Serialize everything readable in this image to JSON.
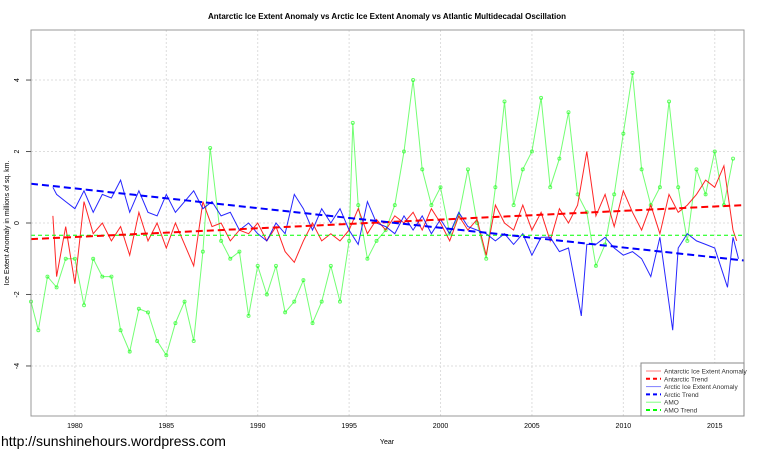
{
  "chart_data": {
    "type": "line",
    "title": "Antarctic Ice Extent Anomaly vs Arctic Ice Extent Anomaly vs Atlantic Multidecadal Oscillation",
    "xlabel": "Year",
    "ylabel": "Ice Extent Anomaly in millions of sq. km.",
    "xlim": [
      1977.6,
      2016.6
    ],
    "ylim": [
      -5.4,
      5.4
    ],
    "x_ticks": [
      1980,
      1985,
      1990,
      1995,
      2000,
      2005,
      2010,
      2015
    ],
    "y_ticks": [
      -4,
      -2,
      0,
      2,
      4
    ],
    "grid": true,
    "legend_position": "bottom-right",
    "colors": {
      "antarctic": "#ff0000",
      "arctic": "#0000ff",
      "amo": "#00ff00"
    },
    "legend": [
      "Antarctic Ice Extent Anomaly",
      "Antarctic Trend",
      "Arctic Ice Extent Anomaly",
      "Arctic Trend",
      "AMO",
      "AMO Trend"
    ],
    "series": [
      {
        "name": "Antarctic Ice Extent Anomaly",
        "color": "#ff0000",
        "x": [
          1978.8,
          1979,
          1979.5,
          1980,
          1980.5,
          1981,
          1981.5,
          1982,
          1982.5,
          1983,
          1983.5,
          1984,
          1984.5,
          1985,
          1985.5,
          1986,
          1986.5,
          1987,
          1987.5,
          1988,
          1988.5,
          1989,
          1989.5,
          1990,
          1990.5,
          1991,
          1991.5,
          1992,
          1992.5,
          1993,
          1993.5,
          1994,
          1994.5,
          1995,
          1995.5,
          1996,
          1996.5,
          1997,
          1997.5,
          1998,
          1998.5,
          1999,
          1999.5,
          2000,
          2000.5,
          2001,
          2001.5,
          2002,
          2002.5,
          2003,
          2003.5,
          2004,
          2004.5,
          2005,
          2005.5,
          2006,
          2006.5,
          2007,
          2007.5,
          2008,
          2008.5,
          2009,
          2009.5,
          2010,
          2010.5,
          2011,
          2011.5,
          2012,
          2012.5,
          2013,
          2013.5,
          2014,
          2014.5,
          2015,
          2015.5,
          2016,
          2016.2
        ],
        "y": [
          0.2,
          -1.5,
          -0.1,
          -1.7,
          0.6,
          -0.3,
          0.0,
          -0.5,
          -0.1,
          -0.9,
          0.3,
          -0.5,
          0.0,
          -0.7,
          0.0,
          -0.6,
          -1.2,
          0.6,
          -0.1,
          0.0,
          -0.5,
          -0.2,
          -0.3,
          0.0,
          -0.5,
          -0.1,
          -0.8,
          -1.1,
          -0.5,
          0.0,
          -0.5,
          -0.3,
          -0.5,
          -0.2,
          0.4,
          -0.3,
          0.1,
          -0.2,
          0.2,
          0.0,
          0.3,
          -0.2,
          0.4,
          0.0,
          -0.5,
          0.2,
          -0.2,
          0.1,
          -0.9,
          0.5,
          0.0,
          -0.2,
          0.5,
          -0.2,
          0.3,
          -0.5,
          0.4,
          0.0,
          0.5,
          2.0,
          0.2,
          0.8,
          -0.1,
          0.9,
          0.3,
          -0.2,
          0.5,
          -0.3,
          0.8,
          0.3,
          0.5,
          0.8,
          1.2,
          1.0,
          1.6,
          -0.2,
          -0.5
        ]
      },
      {
        "name": "Antarctic Trend",
        "color": "#ff0000",
        "x": [
          1977.6,
          2016.6
        ],
        "y": [
          -0.45,
          0.5
        ]
      },
      {
        "name": "Arctic Ice Extent Anomaly",
        "color": "#0000ff",
        "x": [
          1978.8,
          1979,
          1979.5,
          1980,
          1980.5,
          1981,
          1981.5,
          1982,
          1982.5,
          1983,
          1983.5,
          1984,
          1984.5,
          1985,
          1985.5,
          1986,
          1986.5,
          1987,
          1987.5,
          1988,
          1988.5,
          1989,
          1989.5,
          1990,
          1990.5,
          1991,
          1991.5,
          1992,
          1992.5,
          1993,
          1993.5,
          1994,
          1994.5,
          1995,
          1995.5,
          1996,
          1996.5,
          1997,
          1997.5,
          1998,
          1998.5,
          1999,
          1999.5,
          2000,
          2000.5,
          2001,
          2001.5,
          2002,
          2002.5,
          2003,
          2003.5,
          2004,
          2004.5,
          2005,
          2005.5,
          2006,
          2006.5,
          2007,
          2007.7,
          2008,
          2008.5,
          2009,
          2009.5,
          2010,
          2010.5,
          2011,
          2011.5,
          2012,
          2012.7,
          2013,
          2013.5,
          2014,
          2014.5,
          2015,
          2015.7,
          2016,
          2016.3
        ],
        "y": [
          1.0,
          0.8,
          0.6,
          0.4,
          0.9,
          0.3,
          0.8,
          0.7,
          1.2,
          0.3,
          0.9,
          0.3,
          0.2,
          0.8,
          0.3,
          0.6,
          0.9,
          0.4,
          0.6,
          0.2,
          0.3,
          -0.2,
          0.0,
          -0.3,
          -0.5,
          0.0,
          -0.3,
          0.8,
          0.4,
          -0.2,
          0.4,
          0.0,
          0.4,
          -0.2,
          -0.6,
          0.6,
          0.0,
          -0.1,
          -0.3,
          0.2,
          -0.2,
          0.2,
          -0.3,
          0.1,
          -0.3,
          0.3,
          -0.1,
          -0.2,
          -0.3,
          -0.5,
          -0.3,
          -0.6,
          -0.3,
          -0.9,
          -0.4,
          -0.4,
          -0.8,
          -0.7,
          -2.6,
          -0.6,
          -0.6,
          -0.4,
          -0.7,
          -0.9,
          -0.8,
          -1.0,
          -1.5,
          -0.4,
          -3.0,
          -0.7,
          -0.3,
          -0.5,
          -0.6,
          -0.7,
          -1.8,
          -0.4,
          -1.0
        ]
      },
      {
        "name": "Arctic Trend",
        "color": "#0000ff",
        "x": [
          1977.6,
          2016.6
        ],
        "y": [
          1.1,
          -1.05
        ]
      },
      {
        "name": "AMO",
        "color": "#00ff00",
        "x": [
          1977.6,
          1978,
          1978.5,
          1979,
          1979.5,
          1980,
          1980.5,
          1981,
          1981.5,
          1982,
          1982.5,
          1983,
          1983.5,
          1984,
          1984.5,
          1985,
          1985.5,
          1986,
          1986.5,
          1987,
          1987.4,
          1988,
          1988.5,
          1989,
          1989.5,
          1990,
          1990.5,
          1991,
          1991.5,
          1992,
          1992.5,
          1993,
          1993.5,
          1994,
          1994.5,
          1995,
          1995.2,
          1995.5,
          1996,
          1996.5,
          1997,
          1997.5,
          1998,
          1998.5,
          1999,
          1999.5,
          2000,
          2000.5,
          2001,
          2001.5,
          2002,
          2002.5,
          2003,
          2003.5,
          2004,
          2004.5,
          2005,
          2005.5,
          2006,
          2006.5,
          2007,
          2007.5,
          2008,
          2008.5,
          2009,
          2009.5,
          2010,
          2010.5,
          2011,
          2011.5,
          2012,
          2012.5,
          2013,
          2013.5,
          2014,
          2014.5,
          2015,
          2015.5,
          2016
        ],
        "y": [
          -2.2,
          -3.0,
          -1.5,
          -1.8,
          -1.0,
          -1.0,
          -2.3,
          -1.0,
          -1.5,
          -1.5,
          -3.0,
          -3.6,
          -2.4,
          -2.5,
          -3.3,
          -3.7,
          -2.8,
          -2.2,
          -3.3,
          -0.8,
          2.1,
          -0.5,
          -1.0,
          -0.8,
          -2.6,
          -1.2,
          -2.0,
          -1.2,
          -2.5,
          -2.2,
          -1.6,
          -2.8,
          -2.2,
          -1.2,
          -2.2,
          -0.5,
          2.8,
          0.5,
          -1.0,
          -0.5,
          -0.2,
          0.5,
          2.0,
          4.0,
          1.5,
          0.5,
          1.0,
          -0.3,
          0.2,
          1.5,
          0.0,
          -1.0,
          1.0,
          3.4,
          0.5,
          1.5,
          2.0,
          3.5,
          1.0,
          1.8,
          3.1,
          0.8,
          0.3,
          -1.2,
          -0.6,
          0.8,
          2.5,
          4.2,
          1.5,
          0.5,
          1.0,
          3.4,
          1.0,
          -0.5,
          1.5,
          0.8,
          2.0,
          0.5,
          1.8
        ]
      },
      {
        "name": "AMO Trend",
        "color": "#00ff00",
        "x": [
          1977.6,
          2016.6
        ],
        "y": [
          -0.34,
          -0.34
        ]
      }
    ]
  },
  "watermark": "http://sunshinehours.wordpress.com"
}
